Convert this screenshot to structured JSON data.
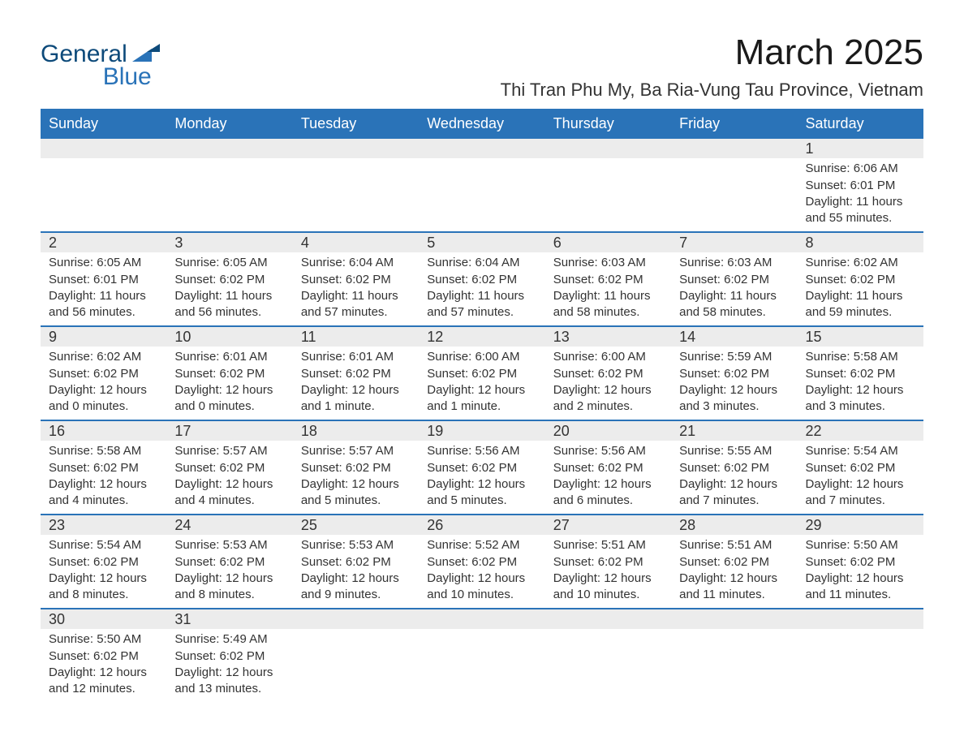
{
  "logo": {
    "text_top": "General",
    "text_bottom": "Blue",
    "color_top": "#0d4a7a",
    "color_bottom": "#2a73b8",
    "triangle_color": "#2a73b8"
  },
  "page_title": "March 2025",
  "subtitle": "Thi Tran Phu My, Ba Ria-Vung Tau Province, Vietnam",
  "colors": {
    "header_bg": "#2a73b8",
    "header_text": "#ffffff",
    "divider": "#2a73b8",
    "daynum_bg": "#ececec",
    "text": "#333333",
    "bg": "#ffffff"
  },
  "typography": {
    "title_fontsize": 44,
    "subtitle_fontsize": 22,
    "header_fontsize": 18,
    "daynum_fontsize": 18,
    "body_fontsize": 15
  },
  "calendar": {
    "type": "table",
    "columns": [
      "Sunday",
      "Monday",
      "Tuesday",
      "Wednesday",
      "Thursday",
      "Friday",
      "Saturday"
    ],
    "weeks": [
      [
        {
          "day": "",
          "sunrise": "",
          "sunset": "",
          "daylight": ""
        },
        {
          "day": "",
          "sunrise": "",
          "sunset": "",
          "daylight": ""
        },
        {
          "day": "",
          "sunrise": "",
          "sunset": "",
          "daylight": ""
        },
        {
          "day": "",
          "sunrise": "",
          "sunset": "",
          "daylight": ""
        },
        {
          "day": "",
          "sunrise": "",
          "sunset": "",
          "daylight": ""
        },
        {
          "day": "",
          "sunrise": "",
          "sunset": "",
          "daylight": ""
        },
        {
          "day": "1",
          "sunrise": "Sunrise: 6:06 AM",
          "sunset": "Sunset: 6:01 PM",
          "daylight": "Daylight: 11 hours and 55 minutes."
        }
      ],
      [
        {
          "day": "2",
          "sunrise": "Sunrise: 6:05 AM",
          "sunset": "Sunset: 6:01 PM",
          "daylight": "Daylight: 11 hours and 56 minutes."
        },
        {
          "day": "3",
          "sunrise": "Sunrise: 6:05 AM",
          "sunset": "Sunset: 6:02 PM",
          "daylight": "Daylight: 11 hours and 56 minutes."
        },
        {
          "day": "4",
          "sunrise": "Sunrise: 6:04 AM",
          "sunset": "Sunset: 6:02 PM",
          "daylight": "Daylight: 11 hours and 57 minutes."
        },
        {
          "day": "5",
          "sunrise": "Sunrise: 6:04 AM",
          "sunset": "Sunset: 6:02 PM",
          "daylight": "Daylight: 11 hours and 57 minutes."
        },
        {
          "day": "6",
          "sunrise": "Sunrise: 6:03 AM",
          "sunset": "Sunset: 6:02 PM",
          "daylight": "Daylight: 11 hours and 58 minutes."
        },
        {
          "day": "7",
          "sunrise": "Sunrise: 6:03 AM",
          "sunset": "Sunset: 6:02 PM",
          "daylight": "Daylight: 11 hours and 58 minutes."
        },
        {
          "day": "8",
          "sunrise": "Sunrise: 6:02 AM",
          "sunset": "Sunset: 6:02 PM",
          "daylight": "Daylight: 11 hours and 59 minutes."
        }
      ],
      [
        {
          "day": "9",
          "sunrise": "Sunrise: 6:02 AM",
          "sunset": "Sunset: 6:02 PM",
          "daylight": "Daylight: 12 hours and 0 minutes."
        },
        {
          "day": "10",
          "sunrise": "Sunrise: 6:01 AM",
          "sunset": "Sunset: 6:02 PM",
          "daylight": "Daylight: 12 hours and 0 minutes."
        },
        {
          "day": "11",
          "sunrise": "Sunrise: 6:01 AM",
          "sunset": "Sunset: 6:02 PM",
          "daylight": "Daylight: 12 hours and 1 minute."
        },
        {
          "day": "12",
          "sunrise": "Sunrise: 6:00 AM",
          "sunset": "Sunset: 6:02 PM",
          "daylight": "Daylight: 12 hours and 1 minute."
        },
        {
          "day": "13",
          "sunrise": "Sunrise: 6:00 AM",
          "sunset": "Sunset: 6:02 PM",
          "daylight": "Daylight: 12 hours and 2 minutes."
        },
        {
          "day": "14",
          "sunrise": "Sunrise: 5:59 AM",
          "sunset": "Sunset: 6:02 PM",
          "daylight": "Daylight: 12 hours and 3 minutes."
        },
        {
          "day": "15",
          "sunrise": "Sunrise: 5:58 AM",
          "sunset": "Sunset: 6:02 PM",
          "daylight": "Daylight: 12 hours and 3 minutes."
        }
      ],
      [
        {
          "day": "16",
          "sunrise": "Sunrise: 5:58 AM",
          "sunset": "Sunset: 6:02 PM",
          "daylight": "Daylight: 12 hours and 4 minutes."
        },
        {
          "day": "17",
          "sunrise": "Sunrise: 5:57 AM",
          "sunset": "Sunset: 6:02 PM",
          "daylight": "Daylight: 12 hours and 4 minutes."
        },
        {
          "day": "18",
          "sunrise": "Sunrise: 5:57 AM",
          "sunset": "Sunset: 6:02 PM",
          "daylight": "Daylight: 12 hours and 5 minutes."
        },
        {
          "day": "19",
          "sunrise": "Sunrise: 5:56 AM",
          "sunset": "Sunset: 6:02 PM",
          "daylight": "Daylight: 12 hours and 5 minutes."
        },
        {
          "day": "20",
          "sunrise": "Sunrise: 5:56 AM",
          "sunset": "Sunset: 6:02 PM",
          "daylight": "Daylight: 12 hours and 6 minutes."
        },
        {
          "day": "21",
          "sunrise": "Sunrise: 5:55 AM",
          "sunset": "Sunset: 6:02 PM",
          "daylight": "Daylight: 12 hours and 7 minutes."
        },
        {
          "day": "22",
          "sunrise": "Sunrise: 5:54 AM",
          "sunset": "Sunset: 6:02 PM",
          "daylight": "Daylight: 12 hours and 7 minutes."
        }
      ],
      [
        {
          "day": "23",
          "sunrise": "Sunrise: 5:54 AM",
          "sunset": "Sunset: 6:02 PM",
          "daylight": "Daylight: 12 hours and 8 minutes."
        },
        {
          "day": "24",
          "sunrise": "Sunrise: 5:53 AM",
          "sunset": "Sunset: 6:02 PM",
          "daylight": "Daylight: 12 hours and 8 minutes."
        },
        {
          "day": "25",
          "sunrise": "Sunrise: 5:53 AM",
          "sunset": "Sunset: 6:02 PM",
          "daylight": "Daylight: 12 hours and 9 minutes."
        },
        {
          "day": "26",
          "sunrise": "Sunrise: 5:52 AM",
          "sunset": "Sunset: 6:02 PM",
          "daylight": "Daylight: 12 hours and 10 minutes."
        },
        {
          "day": "27",
          "sunrise": "Sunrise: 5:51 AM",
          "sunset": "Sunset: 6:02 PM",
          "daylight": "Daylight: 12 hours and 10 minutes."
        },
        {
          "day": "28",
          "sunrise": "Sunrise: 5:51 AM",
          "sunset": "Sunset: 6:02 PM",
          "daylight": "Daylight: 12 hours and 11 minutes."
        },
        {
          "day": "29",
          "sunrise": "Sunrise: 5:50 AM",
          "sunset": "Sunset: 6:02 PM",
          "daylight": "Daylight: 12 hours and 11 minutes."
        }
      ],
      [
        {
          "day": "30",
          "sunrise": "Sunrise: 5:50 AM",
          "sunset": "Sunset: 6:02 PM",
          "daylight": "Daylight: 12 hours and 12 minutes."
        },
        {
          "day": "31",
          "sunrise": "Sunrise: 5:49 AM",
          "sunset": "Sunset: 6:02 PM",
          "daylight": "Daylight: 12 hours and 13 minutes."
        },
        {
          "day": "",
          "sunrise": "",
          "sunset": "",
          "daylight": ""
        },
        {
          "day": "",
          "sunrise": "",
          "sunset": "",
          "daylight": ""
        },
        {
          "day": "",
          "sunrise": "",
          "sunset": "",
          "daylight": ""
        },
        {
          "day": "",
          "sunrise": "",
          "sunset": "",
          "daylight": ""
        },
        {
          "day": "",
          "sunrise": "",
          "sunset": "",
          "daylight": ""
        }
      ]
    ]
  }
}
